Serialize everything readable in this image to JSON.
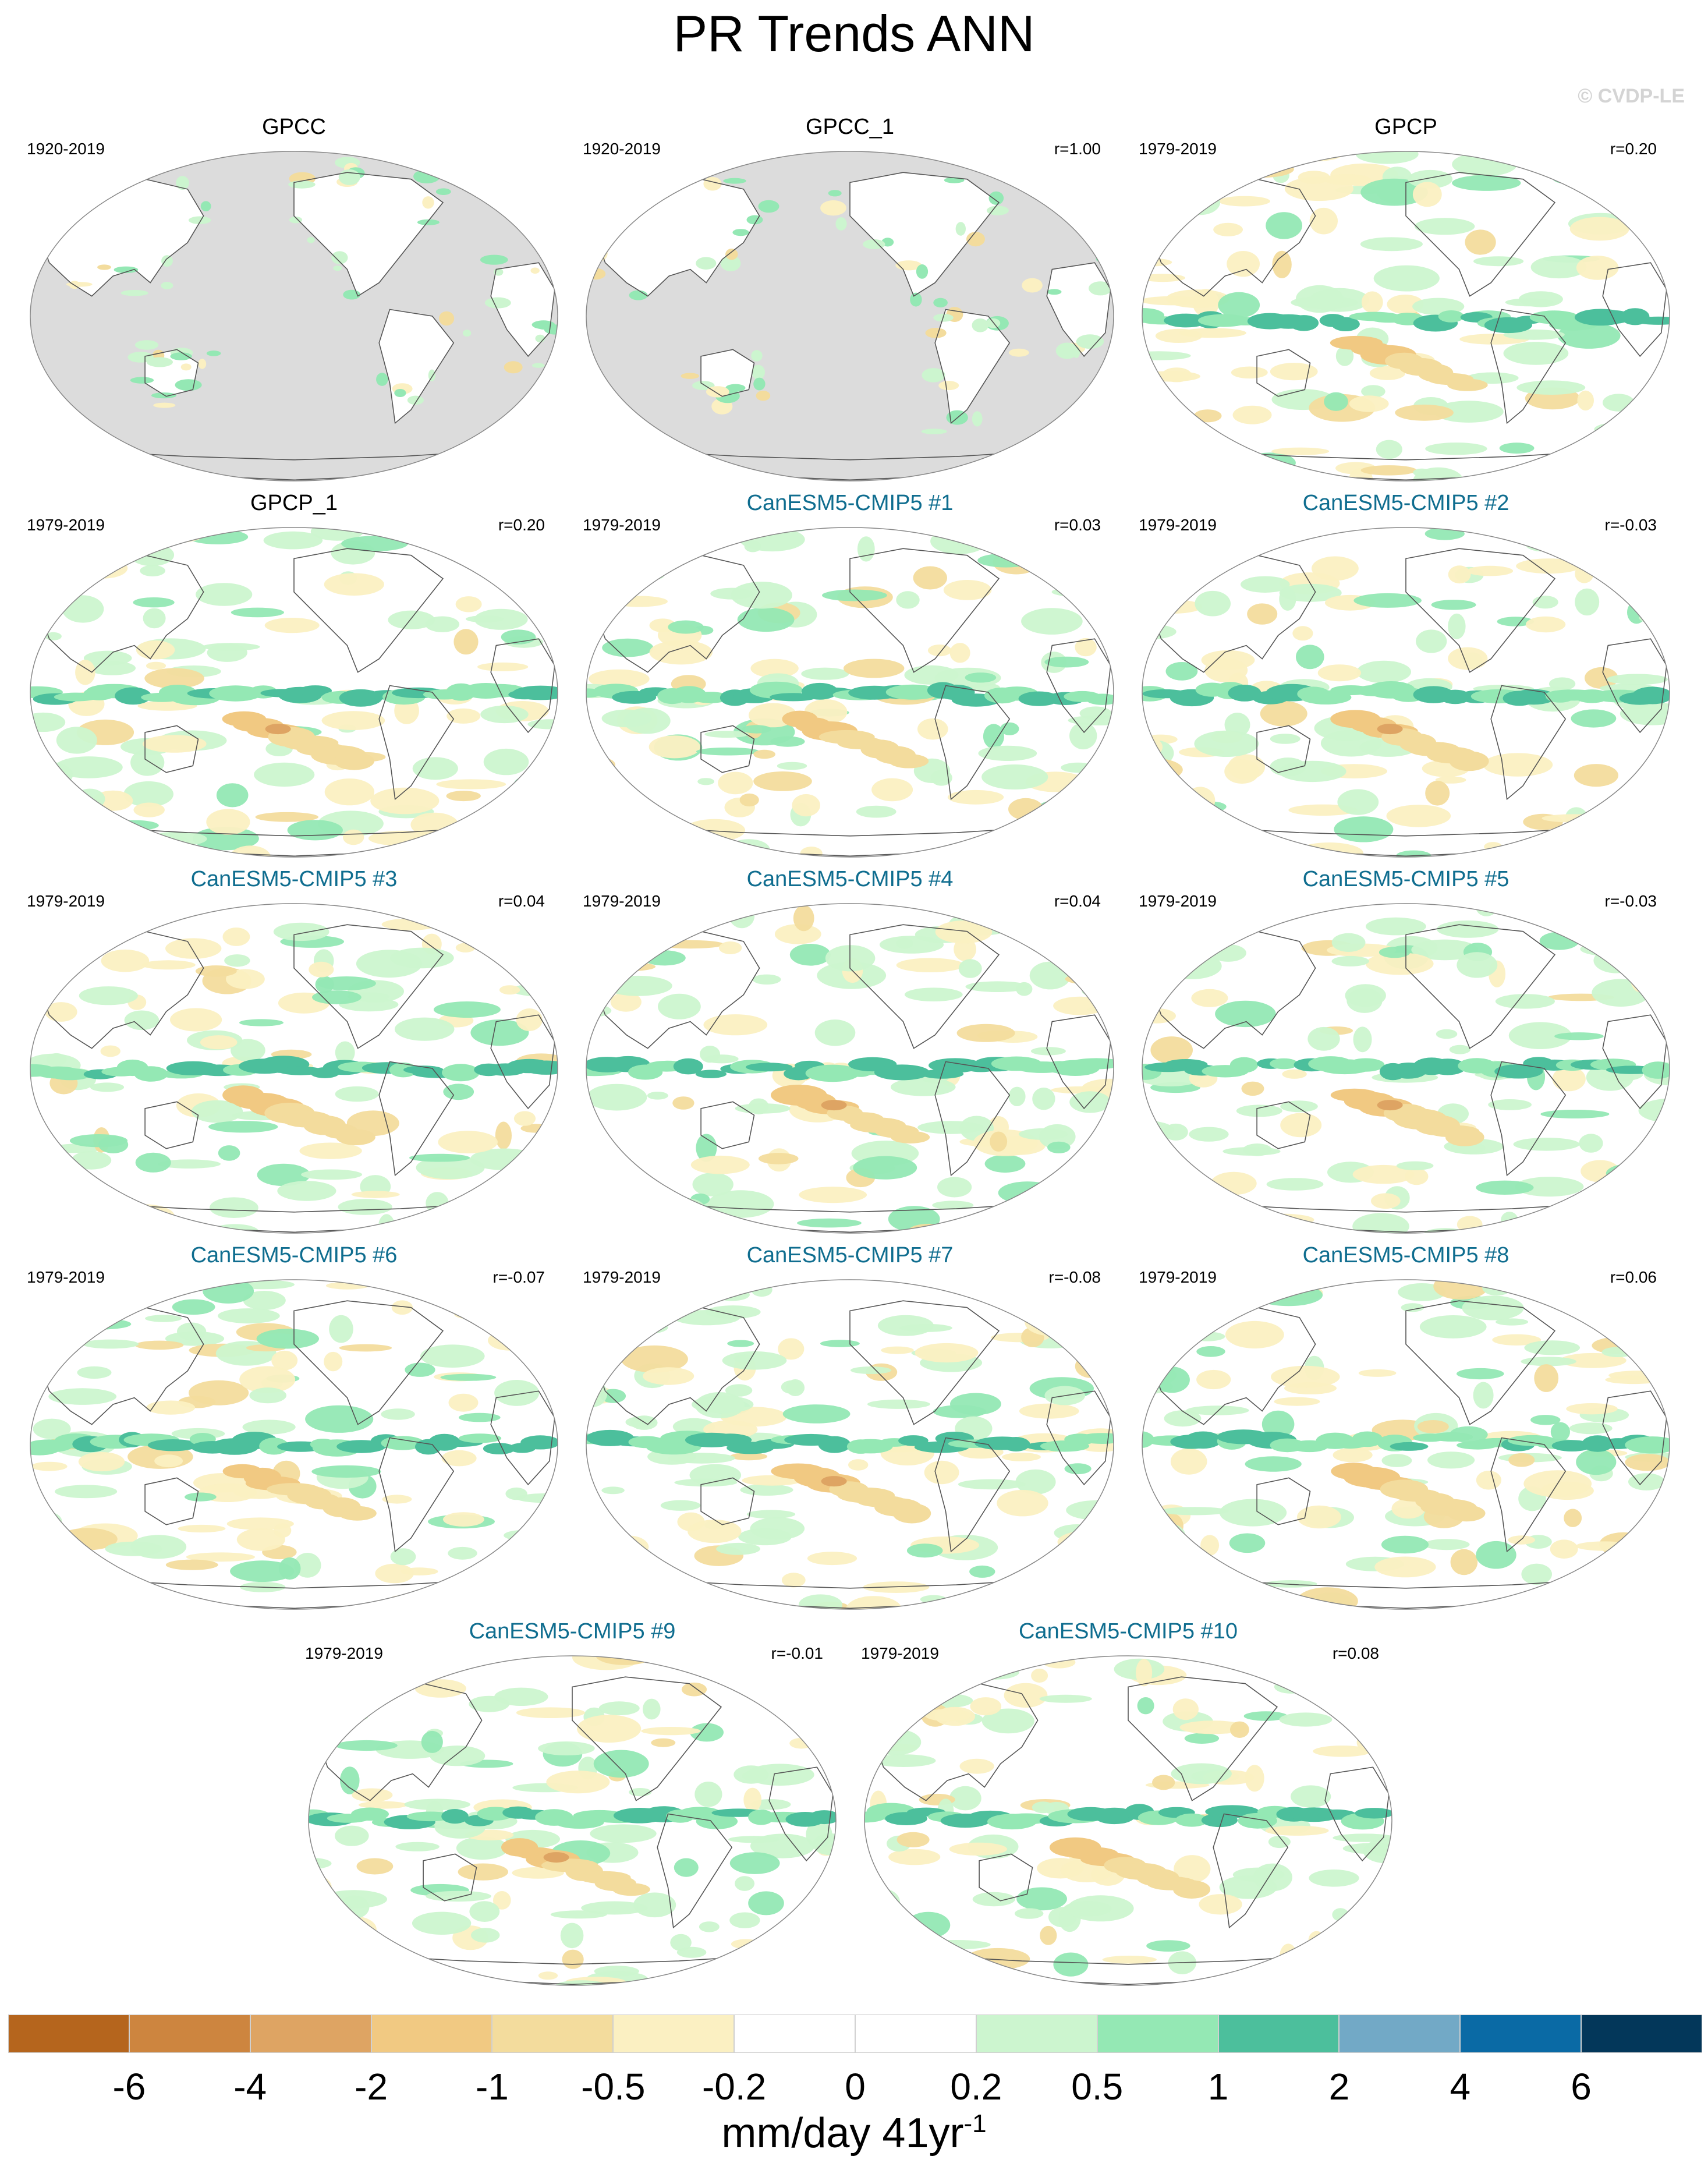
{
  "title": "PR Trends ANN",
  "copyright": "© CVDP-LE",
  "colors": {
    "land_missing": "#dcdcdc",
    "ocean_background": "#ffffff",
    "model_title": "#0f6d8f",
    "coast": "#555555"
  },
  "panels": [
    {
      "title": "GPCC",
      "period": "1920-2019",
      "r": "",
      "kind": "obs-land"
    },
    {
      "title": "GPCC_1",
      "period": "1920-2019",
      "r": "r=1.00",
      "kind": "obs-land"
    },
    {
      "title": "GPCP",
      "period": "1979-2019",
      "r": "r=0.20",
      "kind": "obs"
    },
    {
      "title": "GPCP_1",
      "period": "1979-2019",
      "r": "r=0.20",
      "kind": "obs"
    },
    {
      "title": "CanESM5-CMIP5 #1",
      "period": "1979-2019",
      "r": "r=0.03",
      "kind": "model"
    },
    {
      "title": "CanESM5-CMIP5 #2",
      "period": "1979-2019",
      "r": "r=-0.03",
      "kind": "model"
    },
    {
      "title": "CanESM5-CMIP5 #3",
      "period": "1979-2019",
      "r": "r=0.04",
      "kind": "model"
    },
    {
      "title": "CanESM5-CMIP5 #4",
      "period": "1979-2019",
      "r": "r=0.04",
      "kind": "model"
    },
    {
      "title": "CanESM5-CMIP5 #5",
      "period": "1979-2019",
      "r": "r=-0.03",
      "kind": "model"
    },
    {
      "title": "CanESM5-CMIP5 #6",
      "period": "1979-2019",
      "r": "r=-0.07",
      "kind": "model"
    },
    {
      "title": "CanESM5-CMIP5 #7",
      "period": "1979-2019",
      "r": "r=-0.08",
      "kind": "model"
    },
    {
      "title": "CanESM5-CMIP5 #8",
      "period": "1979-2019",
      "r": "r=0.06",
      "kind": "model"
    },
    {
      "title": "CanESM5-CMIP5 #9",
      "period": "1979-2019",
      "r": "r=-0.01",
      "kind": "model"
    },
    {
      "title": "CanESM5-CMIP5 #10",
      "period": "1979-2019",
      "r": "r=0.08",
      "kind": "model"
    }
  ],
  "colorbar": {
    "colors": [
      "#b5651d",
      "#cd853f",
      "#dea463",
      "#f1c982",
      "#f3dc9d",
      "#fbf0c2",
      "#ffffff",
      "#ffffff",
      "#ccf5cf",
      "#94e8b4",
      "#4cbf9c",
      "#72a9c6",
      "#0a6aa5",
      "#03375a"
    ],
    "tick_labels": [
      "-6",
      "-4",
      "-2",
      "-1",
      "-0.5",
      "-0.2",
      "0",
      "0.2",
      "0.5",
      "1",
      "2",
      "4",
      "6"
    ],
    "units_text": "mm/day 41yr",
    "units_sup": "-1"
  }
}
